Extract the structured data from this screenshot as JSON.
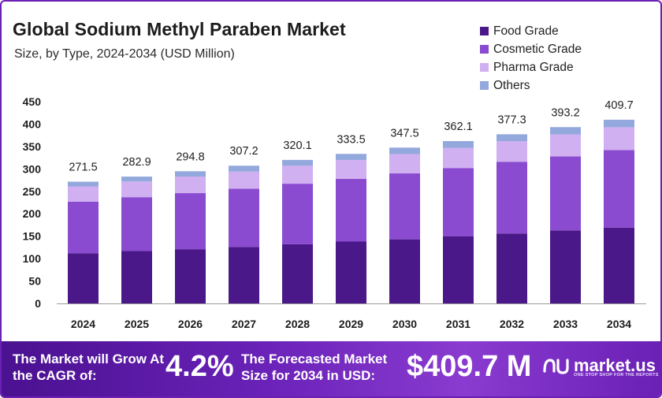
{
  "header": {
    "title": "Global Sodium Methyl Paraben Market",
    "subtitle": "Size, by Type, 2024-2034 (USD Million)"
  },
  "colors": {
    "food": "#4a1888",
    "cosmetic": "#8a4bd0",
    "pharma": "#d0b0f0",
    "others": "#93a8dc",
    "footer_bg": "#6a1fb5"
  },
  "chart_data": {
    "type": "bar",
    "stacked": true,
    "categories": [
      "2024",
      "2025",
      "2026",
      "2027",
      "2028",
      "2029",
      "2030",
      "2031",
      "2032",
      "2033",
      "2034"
    ],
    "series": [
      {
        "name": "Food Grade",
        "values": [
          112,
          117,
          121,
          126,
          132,
          138,
          143,
          150,
          156,
          163,
          169
        ]
      },
      {
        "name": "Cosmetic Grade",
        "values": [
          115,
          120,
          125,
          130,
          135,
          140,
          147,
          152,
          160,
          165,
          173
        ]
      },
      {
        "name": "Pharma Grade",
        "values": [
          34,
          35,
          37,
          38,
          40,
          42,
          43,
          45,
          46,
          49,
          51
        ]
      },
      {
        "name": "Others",
        "values": [
          10.5,
          10.9,
          11.8,
          13.2,
          13.1,
          13.5,
          14.5,
          15.1,
          15.3,
          16.2,
          16.7
        ]
      }
    ],
    "totals": [
      "271.5",
      "282.9",
      "294.8",
      "307.2",
      "320.1",
      "333.5",
      "347.5",
      "362.1",
      "377.3",
      "393.2",
      "409.7"
    ],
    "yticks": [
      "0",
      "50",
      "100",
      "150",
      "200",
      "250",
      "300",
      "350",
      "400",
      "450"
    ],
    "ylim": [
      0,
      450
    ],
    "grid": false,
    "legend_position": "top-right"
  },
  "footer": {
    "cagr_label": "The Market will Grow At the CAGR of:",
    "cagr_value": "4.2%",
    "forecast_label": "The Forecasted Market Size for 2034 in USD:",
    "forecast_value": "$409.7 M",
    "brand_name": "market.us",
    "brand_tagline": "ONE STOP SHOP FOR THE REPORTS"
  }
}
